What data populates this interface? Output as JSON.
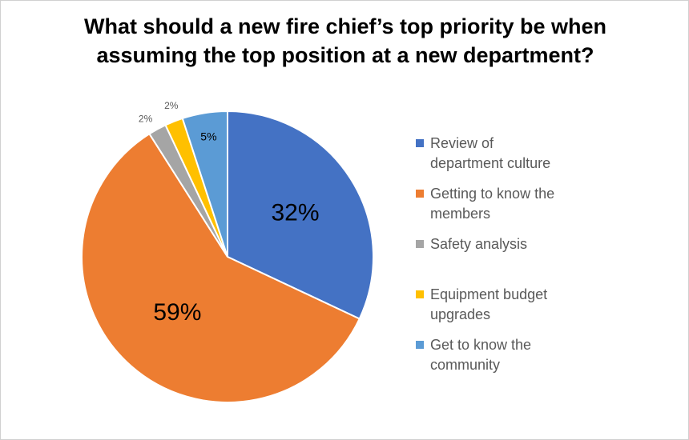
{
  "chart_data": {
    "type": "pie",
    "title": "What should a new fire chief’s top priority be when assuming the top position at a new department?",
    "categories": [
      "Review of department culture",
      "Getting to know the members",
      "Safety analysis",
      "Equipment budget upgrades",
      "Get to know the community"
    ],
    "values": [
      32,
      59,
      2,
      2,
      5
    ],
    "data_labels": [
      "32%",
      "59%",
      "2%",
      "2%",
      "5%"
    ],
    "colors": [
      "#4472C4",
      "#ED7D31",
      "#A5A5A5",
      "#FFC000",
      "#5B9BD5"
    ],
    "legend_position": "right",
    "start_angle": "12 o'clock",
    "direction": "clockwise"
  }
}
